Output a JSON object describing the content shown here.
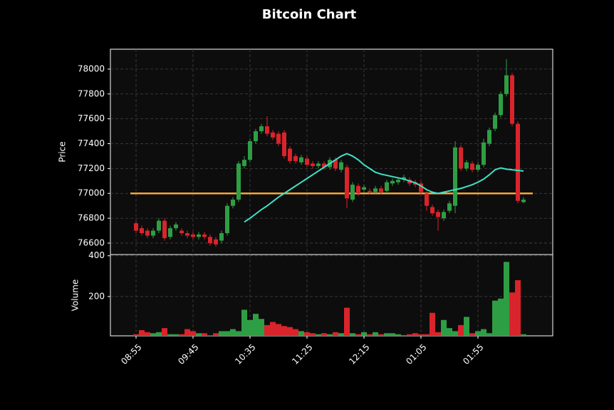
{
  "chart_data": [
    {
      "type": "candlestick",
      "title": "Bitcoin Chart",
      "ylabel": "Price",
      "ylim": [
        76508,
        78160
      ],
      "yticks": [
        76600,
        76800,
        77000,
        77200,
        77400,
        77600,
        77800,
        78000
      ],
      "grid": true,
      "up_color": "#2e9e44",
      "down_color": "#d9242b",
      "open": [
        76760,
        76720,
        76700,
        76660,
        76700,
        76780,
        76650,
        76720,
        76700,
        76680,
        76670,
        76650,
        76670,
        76650,
        76630,
        76620,
        76680,
        76900,
        76950,
        77220,
        77270,
        77420,
        77500,
        77540,
        77490,
        77480,
        77490,
        77360,
        77300,
        77250,
        77280,
        77240,
        77220,
        77240,
        77210,
        77270,
        77190,
        77210,
        76950,
        77060,
        77030,
        77020,
        77010,
        77040,
        77020,
        77080,
        77090,
        77110,
        77110,
        77090,
        77080,
        77000,
        76890,
        76850,
        76800,
        76860,
        76900,
        77370,
        77200,
        77240,
        77190,
        77230,
        77400,
        77520,
        77630,
        77800,
        77950,
        77560,
        76930
      ],
      "high": [
        76780,
        76740,
        76720,
        76720,
        76800,
        76800,
        76740,
        76770,
        76720,
        76700,
        76690,
        76690,
        76690,
        76670,
        76650,
        76700,
        76920,
        76970,
        77260,
        77300,
        77440,
        77520,
        77560,
        77620,
        77510,
        77500,
        77510,
        77380,
        77320,
        77310,
        77300,
        77260,
        77260,
        77260,
        77290,
        77290,
        77270,
        77230,
        77090,
        77080,
        77070,
        77040,
        77060,
        77060,
        77110,
        77120,
        77130,
        77150,
        77130,
        77110,
        77100,
        77020,
        76910,
        76870,
        76870,
        76940,
        77420,
        77390,
        77270,
        77260,
        77250,
        77440,
        77530,
        77650,
        77820,
        78080,
        77970,
        77580,
        76970
      ],
      "low": [
        76680,
        76660,
        76640,
        76640,
        76680,
        76620,
        76630,
        76700,
        76660,
        76640,
        76630,
        76630,
        76630,
        76580,
        76570,
        76600,
        76660,
        76880,
        76930,
        77200,
        77250,
        77400,
        77480,
        77460,
        77430,
        77380,
        77280,
        77240,
        77240,
        77230,
        77210,
        77200,
        77200,
        77190,
        77190,
        77180,
        77170,
        76880,
        76930,
        76980,
        77010,
        76990,
        77000,
        76990,
        77000,
        77060,
        77070,
        77090,
        77060,
        77050,
        76990,
        76860,
        76820,
        76700,
        76780,
        76840,
        76840,
        77180,
        77180,
        77170,
        77170,
        77210,
        77380,
        77500,
        77610,
        77780,
        77540,
        76920,
        76920
      ],
      "close": [
        76700,
        76680,
        76660,
        76700,
        76780,
        76640,
        76720,
        76750,
        76680,
        76660,
        76650,
        76670,
        76650,
        76600,
        76590,
        76680,
        76900,
        76950,
        77240,
        77270,
        77420,
        77500,
        77540,
        77480,
        77450,
        77400,
        77300,
        77260,
        77260,
        77290,
        77230,
        77220,
        77240,
        77210,
        77270,
        77200,
        77250,
        76960,
        77070,
        77000,
        77050,
        77010,
        77040,
        77010,
        77090,
        77100,
        77110,
        77130,
        77080,
        77070,
        77010,
        76900,
        76840,
        76810,
        76850,
        76920,
        77370,
        77200,
        77250,
        77190,
        77230,
        77410,
        77510,
        77630,
        77800,
        77950,
        77560,
        76940,
        76950
      ],
      "ma": {
        "color": "#40e0c8",
        "values": [
          null,
          null,
          null,
          null,
          null,
          null,
          null,
          null,
          null,
          null,
          null,
          null,
          null,
          null,
          null,
          null,
          null,
          null,
          null,
          76770,
          76800,
          76835,
          76870,
          76900,
          76935,
          76970,
          77000,
          77030,
          77060,
          77090,
          77120,
          77150,
          77180,
          77210,
          77240,
          77270,
          77300,
          77320,
          77300,
          77270,
          77230,
          77200,
          77170,
          77155,
          77145,
          77135,
          77125,
          77115,
          77100,
          77085,
          77060,
          77030,
          77010,
          77000,
          77010,
          77020,
          77030,
          77040,
          77055,
          77070,
          77090,
          77115,
          77150,
          77190,
          77205,
          77195,
          77190,
          77185,
          77180
        ]
      },
      "hline": {
        "value": 77000,
        "color": "#f5a535"
      }
    },
    {
      "type": "bar",
      "ylabel": "Volume",
      "ylim": [
        7,
        406
      ],
      "yticks": [
        200,
        400
      ],
      "grid": true,
      "categories": [
        "08:55",
        null,
        null,
        null,
        null,
        null,
        null,
        null,
        null,
        null,
        "09:45",
        null,
        null,
        null,
        null,
        null,
        null,
        null,
        null,
        null,
        "10:35",
        null,
        null,
        null,
        null,
        null,
        null,
        null,
        null,
        null,
        "11:25",
        null,
        null,
        null,
        null,
        null,
        null,
        null,
        null,
        null,
        "12:15",
        null,
        null,
        null,
        null,
        null,
        null,
        null,
        null,
        null,
        "01:05",
        null,
        null,
        null,
        null,
        null,
        null,
        null,
        null,
        null,
        "01:55",
        null,
        null,
        null,
        null,
        null,
        null,
        null,
        null
      ],
      "values": [
        15,
        35,
        25,
        20,
        25,
        45,
        15,
        15,
        15,
        40,
        30,
        20,
        20,
        10,
        20,
        30,
        30,
        40,
        30,
        135,
        85,
        115,
        90,
        60,
        75,
        65,
        55,
        50,
        40,
        30,
        25,
        20,
        15,
        20,
        15,
        25,
        20,
        145,
        20,
        15,
        25,
        15,
        25,
        15,
        20,
        20,
        15,
        10,
        15,
        20,
        15,
        15,
        120,
        25,
        85,
        45,
        30,
        60,
        100,
        20,
        30,
        40,
        20,
        180,
        190,
        370,
        220,
        280,
        15
      ]
    }
  ]
}
